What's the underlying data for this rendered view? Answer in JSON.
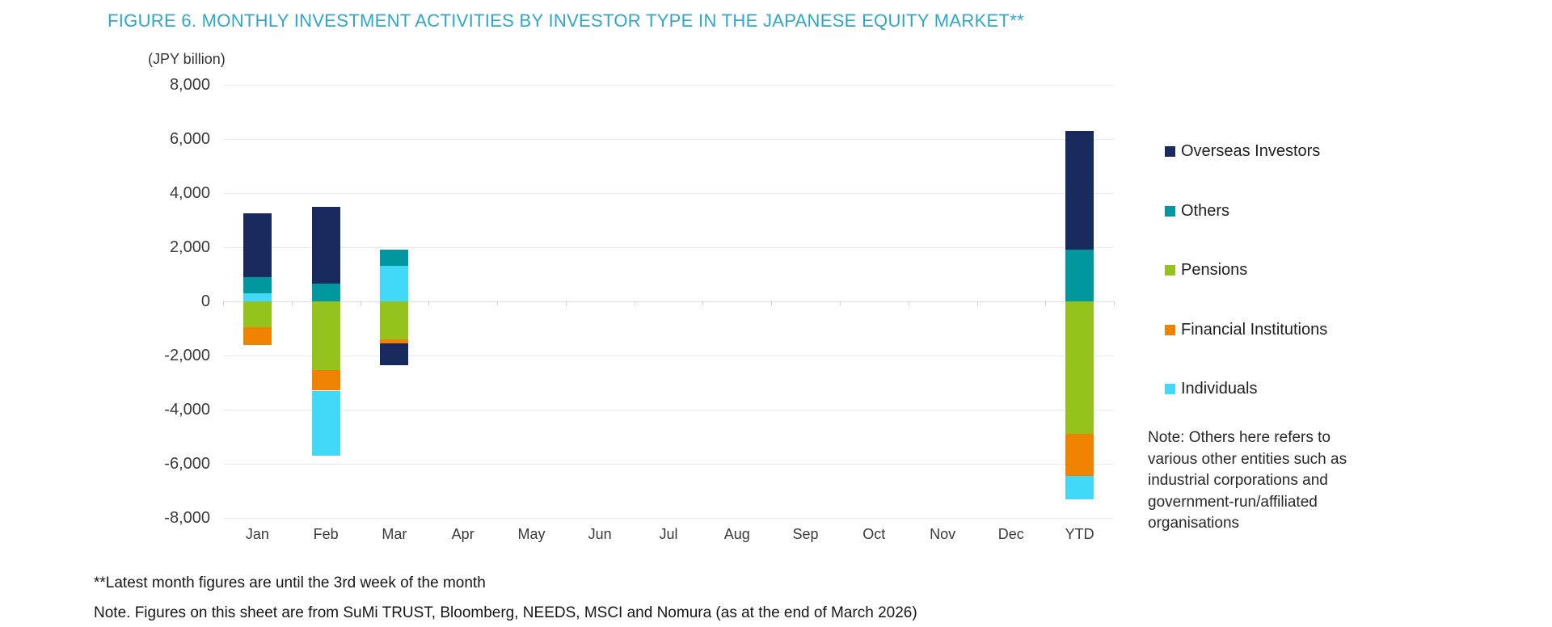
{
  "figure": {
    "title": "FIGURE 6. MONTHLY INVESTMENT ACTIVITIES BY INVESTOR TYPE IN THE JAPANESE EQUITY MARKET**"
  },
  "chart_data": {
    "type": "bar",
    "stacked": true,
    "unit_label": "(JPY billion)",
    "categories": [
      "Jan",
      "Feb",
      "Mar",
      "Apr",
      "May",
      "Jun",
      "Jul",
      "Aug",
      "Sep",
      "Oct",
      "Nov",
      "Dec",
      "YTD"
    ],
    "series": [
      {
        "name": "Overseas Investors",
        "color": "#18295e",
        "values": [
          2350,
          2850,
          -800,
          0,
          0,
          0,
          0,
          0,
          0,
          0,
          0,
          0,
          4400
        ]
      },
      {
        "name": "Others",
        "color": "#00979e",
        "values": [
          600,
          650,
          600,
          0,
          0,
          0,
          0,
          0,
          0,
          0,
          0,
          0,
          1900
        ]
      },
      {
        "name": "Pensions",
        "color": "#96c21e",
        "values": [
          -950,
          -2550,
          -1400,
          0,
          0,
          0,
          0,
          0,
          0,
          0,
          0,
          0,
          -4900
        ]
      },
      {
        "name": "Financial Institutions",
        "color": "#ef8300",
        "values": [
          -650,
          -750,
          -150,
          0,
          0,
          0,
          0,
          0,
          0,
          0,
          0,
          0,
          -1550
        ]
      },
      {
        "name": "Individuals",
        "color": "#42d8f7",
        "values": [
          300,
          -2400,
          1300,
          0,
          0,
          0,
          0,
          0,
          0,
          0,
          0,
          0,
          -850
        ]
      }
    ],
    "pos_stack_order": [
      "Individuals",
      "Others",
      "Overseas Investors"
    ],
    "neg_stack_order": [
      "Pensions",
      "Financial Institutions",
      "Individuals",
      "Overseas Investors"
    ],
    "ylim": [
      -8000,
      8000
    ],
    "ytick_step": 2000,
    "ytick_labels": [
      "8,000",
      "6,000",
      "4,000",
      "2,000",
      "0",
      "-2,000",
      "-4,000",
      "-6,000",
      "-8,000"
    ],
    "grid": true,
    "legend_position": "right"
  },
  "notes": {
    "others_note_lines": [
      "Note: Others here refers to",
      "various other entities such as",
      "industrial corporations and",
      "government-run/affiliated",
      "organisations"
    ],
    "footnote1": "**Latest month figures are until the 3rd week of the month",
    "footnote2": "Note. Figures on this sheet are from SuMi TRUST, Bloomberg, NEEDS, MSCI and Nomura (as at the end of March 2026)"
  }
}
